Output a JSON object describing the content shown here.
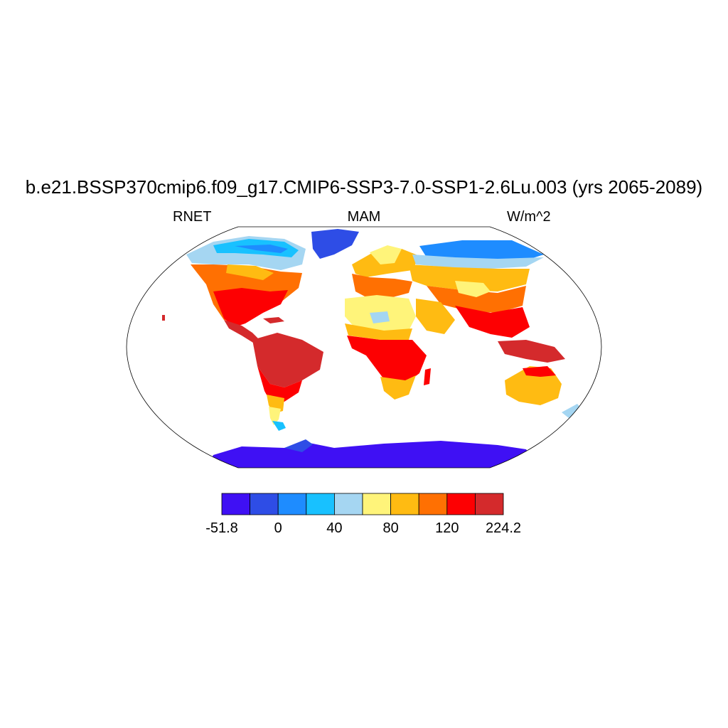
{
  "plot": {
    "title": "b.e21.BSSP370cmip6.f09_g17.CMIP6-SSP3-7.0-SSP1-2.6Lu.003 (yrs 2065-2089)",
    "left_label": "RNET",
    "center_label": "MAM",
    "right_label": "W/m^2"
  },
  "colorbar": {
    "colors": [
      "#3f10f4",
      "#2e4de6",
      "#1e8cff",
      "#18c1ff",
      "#a5d6f2",
      "#fff47a",
      "#ffbb12",
      "#ff7002",
      "#fd0002",
      "#d42a2c"
    ],
    "tick_labels": [
      "-51.8",
      "0",
      "40",
      "80",
      "120",
      "224.2"
    ]
  }
}
